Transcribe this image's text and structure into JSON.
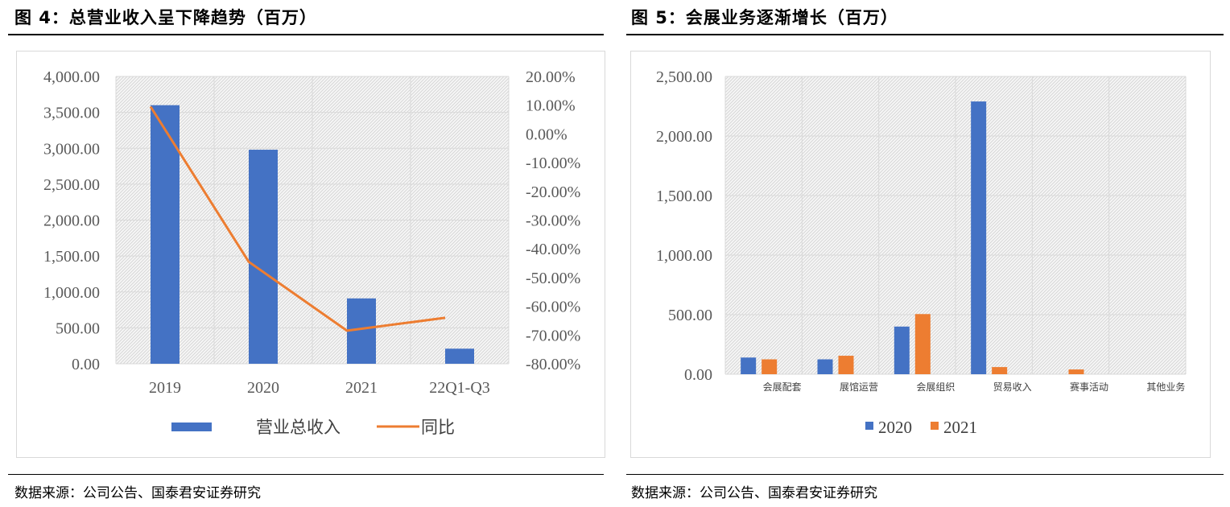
{
  "left": {
    "title": "图 4：总营业收入呈下降趋势（百万）",
    "source": "数据来源：公司公告、国泰君安证券研究",
    "chart_data": {
      "type": "bar",
      "categories": [
        "2019",
        "2020",
        "2021",
        "22Q1-Q3"
      ],
      "series": [
        {
          "name": "营业总收入",
          "type": "bar",
          "axis": "left",
          "color": "#4472C4",
          "values": [
            3600,
            2980,
            910,
            210
          ]
        },
        {
          "name": "同比",
          "type": "line",
          "axis": "right",
          "color": "#ED7D31",
          "values": [
            0.095,
            -0.445,
            -0.685,
            -0.64
          ]
        }
      ],
      "ylim": [
        0,
        4000
      ],
      "y_ticks": [
        "0.00",
        "500.00",
        "1,000.00",
        "1,500.00",
        "2,000.00",
        "2,500.00",
        "3,000.00",
        "3,500.00",
        "4,000.00"
      ],
      "y2lim": [
        -0.8,
        0.2
      ],
      "y2_ticks": [
        "-80.00%",
        "-70.00%",
        "-60.00%",
        "-50.00%",
        "-40.00%",
        "-30.00%",
        "-20.00%",
        "-10.00%",
        "0.00%",
        "10.00%",
        "20.00%"
      ],
      "grid": true,
      "legend": "bottom"
    }
  },
  "right": {
    "title": "图 5：会展业务逐渐增长（百万）",
    "source": "数据来源：公司公告、国泰君安证券研究",
    "chart_data": {
      "type": "bar",
      "categories": [
        "会展配套",
        "展馆运营",
        "会展组织",
        "贸易收入",
        "赛事活动",
        "其他业务"
      ],
      "series": [
        {
          "name": "2020",
          "color": "#4472C4",
          "values": [
            140,
            125,
            400,
            2290,
            0,
            0
          ]
        },
        {
          "name": "2021",
          "color": "#ED7D31",
          "values": [
            125,
            155,
            505,
            60,
            40,
            0
          ]
        }
      ],
      "ylim": [
        0,
        2500
      ],
      "y_ticks": [
        "0.00",
        "500.00",
        "1,000.00",
        "1,500.00",
        "2,000.00",
        "2,500.00"
      ],
      "grid": true,
      "legend": "bottom"
    }
  }
}
